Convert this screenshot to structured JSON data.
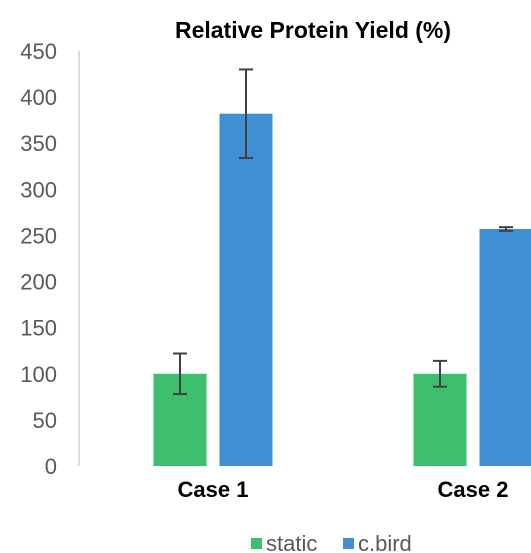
{
  "chart_data": {
    "type": "bar",
    "title": "Relative Protein Yield (%)",
    "xlabel": "",
    "ylabel": "",
    "categories": [
      "Case 1",
      "Case 2"
    ],
    "ylim": [
      0,
      450
    ],
    "yticks": [
      0,
      50,
      100,
      150,
      200,
      250,
      300,
      350,
      400,
      450
    ],
    "grid": false,
    "legend_position": "bottom",
    "series": [
      {
        "name": "static",
        "color": "#3dbf6e",
        "values": [
          100,
          100
        ],
        "error": [
          22,
          14
        ]
      },
      {
        "name": "c.bird",
        "color": "#3f8fd2",
        "values": [
          382,
          257
        ],
        "error": [
          48,
          2
        ]
      }
    ]
  }
}
